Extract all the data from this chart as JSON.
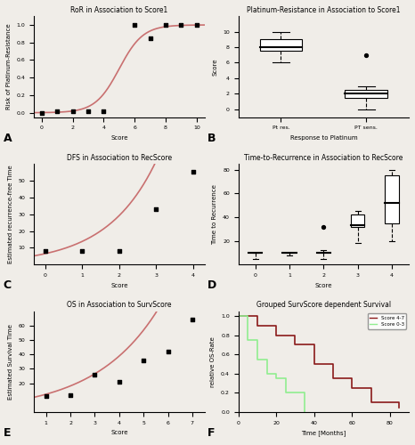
{
  "fig_width": 4.66,
  "fig_height": 5.0,
  "bg_color": "#f0ede8",
  "panel_A": {
    "title": "RoR in Association to Score1",
    "xlabel": "Score",
    "ylabel": "Risk of Platinum-Resistance",
    "xlim": [
      -0.5,
      10.5
    ],
    "ylim": [
      -0.05,
      1.1
    ],
    "xticks": [
      0,
      2,
      4,
      6,
      8,
      10
    ],
    "yticks": [
      0.0,
      0.2,
      0.4,
      0.6,
      0.8,
      1.0
    ],
    "scatter_x": [
      0,
      1,
      2,
      3,
      4,
      6,
      7,
      8,
      9,
      10
    ],
    "scatter_y": [
      0.0,
      0.02,
      0.02,
      0.02,
      0.02,
      1.0,
      0.85,
      1.0,
      1.0,
      1.0
    ],
    "sigmoid_k": 1.3,
    "sigmoid_x0": 5.0,
    "curve_color": "#c97070",
    "scatter_color": "black",
    "scatter_marker": "s",
    "scatter_size": 10
  },
  "panel_B": {
    "title": "Platinum-Resistance in Association to Score1",
    "xlabel": "Response to Platinum",
    "ylabel": "Score",
    "xlim": [
      -0.5,
      1.5
    ],
    "ylim": [
      -1,
      12
    ],
    "yticks": [
      0,
      2,
      4,
      6,
      8,
      10
    ],
    "categories": [
      "Pt res.",
      "PT sens."
    ],
    "boxes": [
      {
        "q1": 7.5,
        "median": 8.0,
        "q3": 9.0,
        "wl": 6.0,
        "wh": 10.0,
        "outliers": []
      },
      {
        "q1": 1.5,
        "median": 2.0,
        "q3": 2.5,
        "wl": 0.0,
        "wh": 3.0,
        "outliers": [
          7.0
        ]
      }
    ]
  },
  "panel_C": {
    "title": "DFS in Association to RecScore",
    "xlabel": "Score",
    "ylabel": "Estimated recurrence-free Time",
    "xlim": [
      -0.3,
      4.3
    ],
    "ylim": [
      0,
      60
    ],
    "xticks": [
      0,
      1,
      2,
      3,
      4
    ],
    "yticks": [
      10,
      20,
      30,
      40,
      50
    ],
    "scatter_x": [
      0,
      1,
      2,
      3,
      4
    ],
    "scatter_y": [
      8,
      8,
      8,
      33,
      55
    ],
    "curve_color": "#c97070",
    "scatter_color": "black",
    "scatter_marker": "s",
    "scatter_size": 10,
    "exp_a": 6.5,
    "exp_b": 0.75
  },
  "panel_D": {
    "title": "Time-to-Recurrence in Association to RecScore",
    "xlabel": "Score",
    "ylabel": "Time to Recurrence",
    "xlim": [
      -0.5,
      4.5
    ],
    "ylim": [
      0,
      85
    ],
    "xticks": [
      0,
      1,
      2,
      3,
      4
    ],
    "yticks": [
      20,
      40,
      60,
      80
    ],
    "boxes": [
      {
        "q1": 10,
        "median": 10,
        "q3": 10,
        "wl": 5,
        "wh": 10,
        "outliers": []
      },
      {
        "q1": 10,
        "median": 10,
        "q3": 10,
        "wl": 8,
        "wh": 10,
        "outliers": []
      },
      {
        "q1": 10,
        "median": 10,
        "q3": 10,
        "wl": 5,
        "wh": 12,
        "outliers": [
          32
        ]
      },
      {
        "q1": 32,
        "median": 33,
        "q3": 42,
        "wl": 18,
        "wh": 45,
        "outliers": []
      },
      {
        "q1": 35,
        "median": 52,
        "q3": 75,
        "wl": 20,
        "wh": 80,
        "outliers": []
      }
    ]
  },
  "panel_E": {
    "title": "OS in Association to SurvScore",
    "xlabel": "Score",
    "ylabel": "Estimated Survival Time",
    "xlim": [
      0.5,
      7.5
    ],
    "ylim": [
      0,
      70
    ],
    "xticks": [
      1,
      2,
      3,
      4,
      5,
      6,
      7
    ],
    "yticks": [
      20,
      30,
      40,
      50,
      60
    ],
    "scatter_x": [
      1,
      2,
      3,
      4,
      5,
      6,
      7
    ],
    "scatter_y": [
      11,
      12,
      26,
      21,
      36,
      42,
      64
    ],
    "curve_color": "#c97070",
    "scatter_color": "black",
    "scatter_marker": "s",
    "scatter_size": 10,
    "exp_a": 8.5,
    "exp_b": 0.38
  },
  "panel_F": {
    "title": "Grouped SurvScore dependent Survival",
    "xlabel": "Time [Months]",
    "ylabel": "relative OS-Rate",
    "xlim": [
      0,
      90
    ],
    "ylim": [
      0,
      1.05
    ],
    "xticks": [
      0,
      20,
      40,
      60,
      80
    ],
    "yticks": [
      0.0,
      0.2,
      0.4,
      0.6,
      0.8,
      1.0
    ],
    "high_score_color": "#8b1a1a",
    "low_score_color": "#90ee90",
    "high_score_label": "Score 4-7",
    "low_score_label": "Score 0-3",
    "km_high_x": [
      0,
      10,
      10,
      20,
      20,
      30,
      30,
      40,
      40,
      50,
      50,
      60,
      60,
      70,
      70,
      85,
      85
    ],
    "km_high_y": [
      1.0,
      1.0,
      0.9,
      0.9,
      0.8,
      0.8,
      0.7,
      0.7,
      0.5,
      0.5,
      0.35,
      0.35,
      0.25,
      0.25,
      0.1,
      0.1,
      0.05
    ],
    "km_low_x": [
      0,
      5,
      5,
      10,
      10,
      15,
      15,
      20,
      20,
      25,
      25,
      35,
      35
    ],
    "km_low_y": [
      1.0,
      1.0,
      0.75,
      0.75,
      0.55,
      0.55,
      0.4,
      0.4,
      0.35,
      0.35,
      0.2,
      0.2,
      0.0
    ]
  }
}
